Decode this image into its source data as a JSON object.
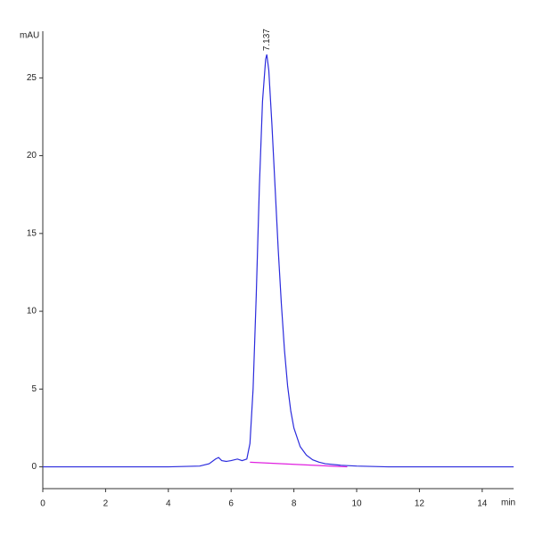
{
  "chart_data": {
    "type": "line",
    "y_label": "mAU",
    "x_label": "min",
    "xlim": [
      0,
      15
    ],
    "ylim": [
      -1.4,
      28
    ],
    "xticks": [
      0,
      2,
      4,
      6,
      8,
      10,
      12,
      14
    ],
    "yticks": [
      0,
      5,
      10,
      15,
      20,
      25
    ],
    "series": [
      {
        "color": "#2b2bdd",
        "x": [
          0,
          1,
          2,
          3,
          4,
          5,
          5.3,
          5.5,
          5.6,
          5.7,
          5.85,
          6.0,
          6.2,
          6.35,
          6.5,
          6.6,
          6.7,
          6.8,
          6.9,
          7.0,
          7.1,
          7.137,
          7.2,
          7.3,
          7.4,
          7.5,
          7.6,
          7.7,
          7.8,
          7.9,
          8.0,
          8.2,
          8.4,
          8.6,
          8.8,
          9.0,
          9.5,
          10,
          11,
          12,
          13,
          14,
          15
        ],
        "y": [
          0,
          0,
          0,
          0,
          0,
          0.05,
          0.2,
          0.5,
          0.6,
          0.4,
          0.35,
          0.4,
          0.5,
          0.4,
          0.5,
          1.5,
          5,
          11,
          18,
          23.5,
          26.2,
          26.5,
          25.5,
          22,
          18,
          14,
          10.5,
          7.5,
          5.2,
          3.6,
          2.5,
          1.3,
          0.75,
          0.45,
          0.3,
          0.2,
          0.1,
          0.05,
          0,
          0,
          0,
          0,
          0
        ]
      }
    ],
    "baseline": {
      "color": "#e020e0",
      "x": [
        6.6,
        9.7
      ],
      "y": [
        0.3,
        0
      ]
    },
    "annotation": {
      "label": "7.137",
      "x": 7.137,
      "y": 26.5
    }
  }
}
